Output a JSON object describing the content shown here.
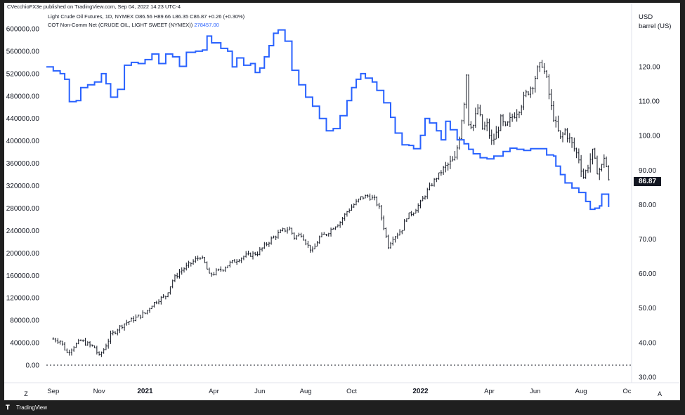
{
  "header": {
    "published": "CVecchioFX3e published on TradingView.com, Sep 04, 2022 14:23 UTC-4",
    "series1_name": "Light Crude Oil Futures, 1D, NYMEX",
    "series1_values": "O86.56 H89.66 L86.35 C86.87 +0.26 (+0.30%)",
    "series2_name": "COT Non-Comm Net (CRUDE OIL, LIGHT SWEET (NYMEX))",
    "series2_value": "278457.00"
  },
  "price_tag": "86.87",
  "footer": {
    "logo_text": "TradingView"
  },
  "buttons": {
    "z": "Z",
    "a": "A"
  },
  "colors": {
    "cot_line": "#2962ff",
    "price_bars": "#131722",
    "background": "#ffffff",
    "frame": "#1f1f1f"
  },
  "chart_data": {
    "type": "line",
    "left_axis": {
      "ticks": [
        "600000.00",
        "560000.00",
        "520000.00",
        "480000.00",
        "440000.00",
        "400000.00",
        "360000.00",
        "320000.00",
        "280000.00",
        "240000.00",
        "200000.00",
        "160000.00",
        "120000.00",
        "80000.00",
        "40000.00",
        "0.00"
      ],
      "range": [
        0,
        620000
      ]
    },
    "right_axis": {
      "unit_line1": "USD",
      "unit_line2": "barrel (US)",
      "ticks": [
        "120.00",
        "110.00",
        "100.00",
        "90.00",
        "80.00",
        "70.00",
        "60.00",
        "50.00",
        "40.00",
        "30.00"
      ],
      "range": [
        27,
        131
      ]
    },
    "x_ticks": [
      {
        "label": "Sep",
        "t": 0.0,
        "year": false
      },
      {
        "label": "Nov",
        "t": 2.0,
        "year": false
      },
      {
        "label": "2021",
        "t": 4.0,
        "year": true
      },
      {
        "label": "Apr",
        "t": 7.0,
        "year": false
      },
      {
        "label": "Jun",
        "t": 9.0,
        "year": false
      },
      {
        "label": "Aug",
        "t": 11.0,
        "year": false
      },
      {
        "label": "Oct",
        "t": 13.0,
        "year": false
      },
      {
        "label": "2022",
        "t": 16.0,
        "year": true
      },
      {
        "label": "Apr",
        "t": 19.0,
        "year": false
      },
      {
        "label": "Jun",
        "t": 21.0,
        "year": false
      },
      {
        "label": "Aug",
        "t": 23.0,
        "year": false
      },
      {
        "label": "Oc",
        "t": 25.0,
        "year": false
      }
    ],
    "x_range": [
      -0.3,
      25.2
    ],
    "series": [
      {
        "name": "COT Non-Comm Net (CRUDE OIL, LIGHT SWEET (NYMEX))",
        "axis": "left",
        "style": "step",
        "points": [
          [
            -0.3,
            532000
          ],
          [
            0.0,
            525000
          ],
          [
            0.3,
            520000
          ],
          [
            0.5,
            510000
          ],
          [
            0.7,
            470000
          ],
          [
            1.0,
            472000
          ],
          [
            1.2,
            495000
          ],
          [
            1.5,
            500000
          ],
          [
            1.8,
            505000
          ],
          [
            2.1,
            520000
          ],
          [
            2.3,
            502000
          ],
          [
            2.5,
            478000
          ],
          [
            2.8,
            492000
          ],
          [
            3.1,
            535000
          ],
          [
            3.4,
            540000
          ],
          [
            3.7,
            538000
          ],
          [
            4.0,
            545000
          ],
          [
            4.3,
            555000
          ],
          [
            4.6,
            538000
          ],
          [
            4.9,
            555000
          ],
          [
            5.2,
            550000
          ],
          [
            5.5,
            533000
          ],
          [
            5.8,
            558000
          ],
          [
            6.2,
            560000
          ],
          [
            6.5,
            562000
          ],
          [
            6.7,
            587000
          ],
          [
            6.9,
            575000
          ],
          [
            7.1,
            575000
          ],
          [
            7.3,
            565000
          ],
          [
            7.6,
            560000
          ],
          [
            7.8,
            532000
          ],
          [
            8.0,
            548000
          ],
          [
            8.3,
            535000
          ],
          [
            8.6,
            538000
          ],
          [
            8.8,
            522000
          ],
          [
            9.0,
            530000
          ],
          [
            9.2,
            550000
          ],
          [
            9.4,
            570000
          ],
          [
            9.6,
            592000
          ],
          [
            9.8,
            598000
          ],
          [
            10.1,
            578000
          ],
          [
            10.4,
            526000
          ],
          [
            10.7,
            500000
          ],
          [
            11.0,
            478000
          ],
          [
            11.3,
            462000
          ],
          [
            11.6,
            440000
          ],
          [
            11.9,
            418000
          ],
          [
            12.2,
            422000
          ],
          [
            12.5,
            445000
          ],
          [
            12.8,
            472000
          ],
          [
            13.0,
            495000
          ],
          [
            13.2,
            510000
          ],
          [
            13.4,
            520000
          ],
          [
            13.6,
            512000
          ],
          [
            13.9,
            505000
          ],
          [
            14.1,
            490000
          ],
          [
            14.4,
            468000
          ],
          [
            14.7,
            442000
          ],
          [
            14.9,
            414000
          ],
          [
            15.2,
            393000
          ],
          [
            15.5,
            392000
          ],
          [
            15.7,
            386000
          ],
          [
            16.0,
            410000
          ],
          [
            16.2,
            440000
          ],
          [
            16.4,
            432000
          ],
          [
            16.7,
            418000
          ],
          [
            16.9,
            402000
          ],
          [
            17.1,
            435000
          ],
          [
            17.3,
            420000
          ],
          [
            17.6,
            402000
          ],
          [
            17.9,
            395000
          ],
          [
            18.1,
            385000
          ],
          [
            18.3,
            377000
          ],
          [
            18.6,
            370000
          ],
          [
            18.9,
            368000
          ],
          [
            19.2,
            373000
          ],
          [
            19.6,
            381000
          ],
          [
            19.9,
            387000
          ],
          [
            20.2,
            385000
          ],
          [
            20.5,
            383000
          ],
          [
            20.8,
            386000
          ],
          [
            21.0,
            386000
          ],
          [
            21.2,
            386000
          ],
          [
            21.5,
            375000
          ],
          [
            21.8,
            373000
          ],
          [
            21.9,
            355000
          ],
          [
            22.1,
            340000
          ],
          [
            22.3,
            325000
          ],
          [
            22.6,
            316000
          ],
          [
            22.9,
            308000
          ],
          [
            23.2,
            292000
          ],
          [
            23.4,
            278000
          ],
          [
            23.6,
            280000
          ],
          [
            23.8,
            284000
          ],
          [
            23.9,
            305000
          ],
          [
            24.1,
            305000
          ],
          [
            24.2,
            282000
          ]
        ]
      },
      {
        "name": "Light Crude Oil Futures, 1D, NYMEX",
        "axis": "right",
        "style": "bars",
        "points": [
          [
            0.0,
            41.0
          ],
          [
            0.3,
            40.5
          ],
          [
            0.6,
            37.0
          ],
          [
            0.9,
            39.0
          ],
          [
            1.2,
            40.5
          ],
          [
            1.5,
            39.5
          ],
          [
            1.8,
            38.5
          ],
          [
            2.0,
            36.0
          ],
          [
            2.2,
            38.0
          ],
          [
            2.5,
            42.0
          ],
          [
            2.8,
            44.0
          ],
          [
            3.1,
            45.5
          ],
          [
            3.4,
            46.5
          ],
          [
            3.7,
            47.5
          ],
          [
            4.0,
            48.5
          ],
          [
            4.3,
            51.0
          ],
          [
            4.6,
            52.5
          ],
          [
            4.9,
            53.5
          ],
          [
            5.2,
            58.0
          ],
          [
            5.5,
            60.5
          ],
          [
            5.8,
            62.0
          ],
          [
            6.1,
            63.5
          ],
          [
            6.4,
            65.0
          ],
          [
            6.6,
            63.0
          ],
          [
            6.8,
            59.5
          ],
          [
            7.1,
            60.5
          ],
          [
            7.4,
            61.5
          ],
          [
            7.7,
            63.0
          ],
          [
            8.0,
            64.0
          ],
          [
            8.3,
            65.0
          ],
          [
            8.6,
            65.5
          ],
          [
            8.9,
            66.0
          ],
          [
            9.2,
            68.0
          ],
          [
            9.5,
            70.0
          ],
          [
            9.8,
            71.5
          ],
          [
            10.0,
            72.5
          ],
          [
            10.3,
            73.0
          ],
          [
            10.5,
            70.5
          ],
          [
            10.8,
            71.5
          ],
          [
            11.1,
            68.0
          ],
          [
            11.3,
            66.5
          ],
          [
            11.6,
            70.5
          ],
          [
            11.9,
            71.5
          ],
          [
            12.2,
            73.5
          ],
          [
            12.5,
            75.0
          ],
          [
            12.8,
            78.0
          ],
          [
            13.1,
            80.0
          ],
          [
            13.4,
            82.0
          ],
          [
            13.7,
            82.5
          ],
          [
            14.0,
            81.5
          ],
          [
            14.2,
            79.0
          ],
          [
            14.4,
            73.5
          ],
          [
            14.6,
            68.0
          ],
          [
            14.8,
            70.5
          ],
          [
            15.0,
            71.5
          ],
          [
            15.2,
            73.0
          ],
          [
            15.4,
            76.5
          ],
          [
            15.7,
            78.0
          ],
          [
            16.0,
            80.5
          ],
          [
            16.3,
            84.0
          ],
          [
            16.6,
            87.0
          ],
          [
            16.9,
            89.5
          ],
          [
            17.2,
            91.5
          ],
          [
            17.5,
            93.0
          ],
          [
            17.7,
            100.0
          ],
          [
            17.9,
            110.0
          ],
          [
            18.0,
            118.0
          ],
          [
            18.1,
            104.0
          ],
          [
            18.3,
            103.0
          ],
          [
            18.5,
            108.0
          ],
          [
            18.7,
            102.0
          ],
          [
            18.9,
            103.0
          ],
          [
            19.1,
            98.0
          ],
          [
            19.3,
            100.5
          ],
          [
            19.5,
            104.5
          ],
          [
            19.7,
            102.0
          ],
          [
            20.0,
            105.5
          ],
          [
            20.3,
            108.0
          ],
          [
            20.6,
            112.0
          ],
          [
            20.9,
            115.0
          ],
          [
            21.1,
            119.0
          ],
          [
            21.3,
            121.0
          ],
          [
            21.5,
            116.0
          ],
          [
            21.7,
            108.0
          ],
          [
            21.9,
            103.0
          ],
          [
            22.1,
            99.0
          ],
          [
            22.3,
            101.5
          ],
          [
            22.6,
            97.5
          ],
          [
            22.9,
            93.5
          ],
          [
            23.1,
            88.0
          ],
          [
            23.3,
            91.5
          ],
          [
            23.5,
            95.0
          ],
          [
            23.7,
            89.5
          ],
          [
            23.9,
            91.0
          ],
          [
            24.0,
            94.0
          ],
          [
            24.1,
            91.0
          ],
          [
            24.2,
            86.87
          ]
        ]
      }
    ],
    "reference_line": {
      "axis": "left",
      "value": 0,
      "style": "dotted"
    }
  }
}
